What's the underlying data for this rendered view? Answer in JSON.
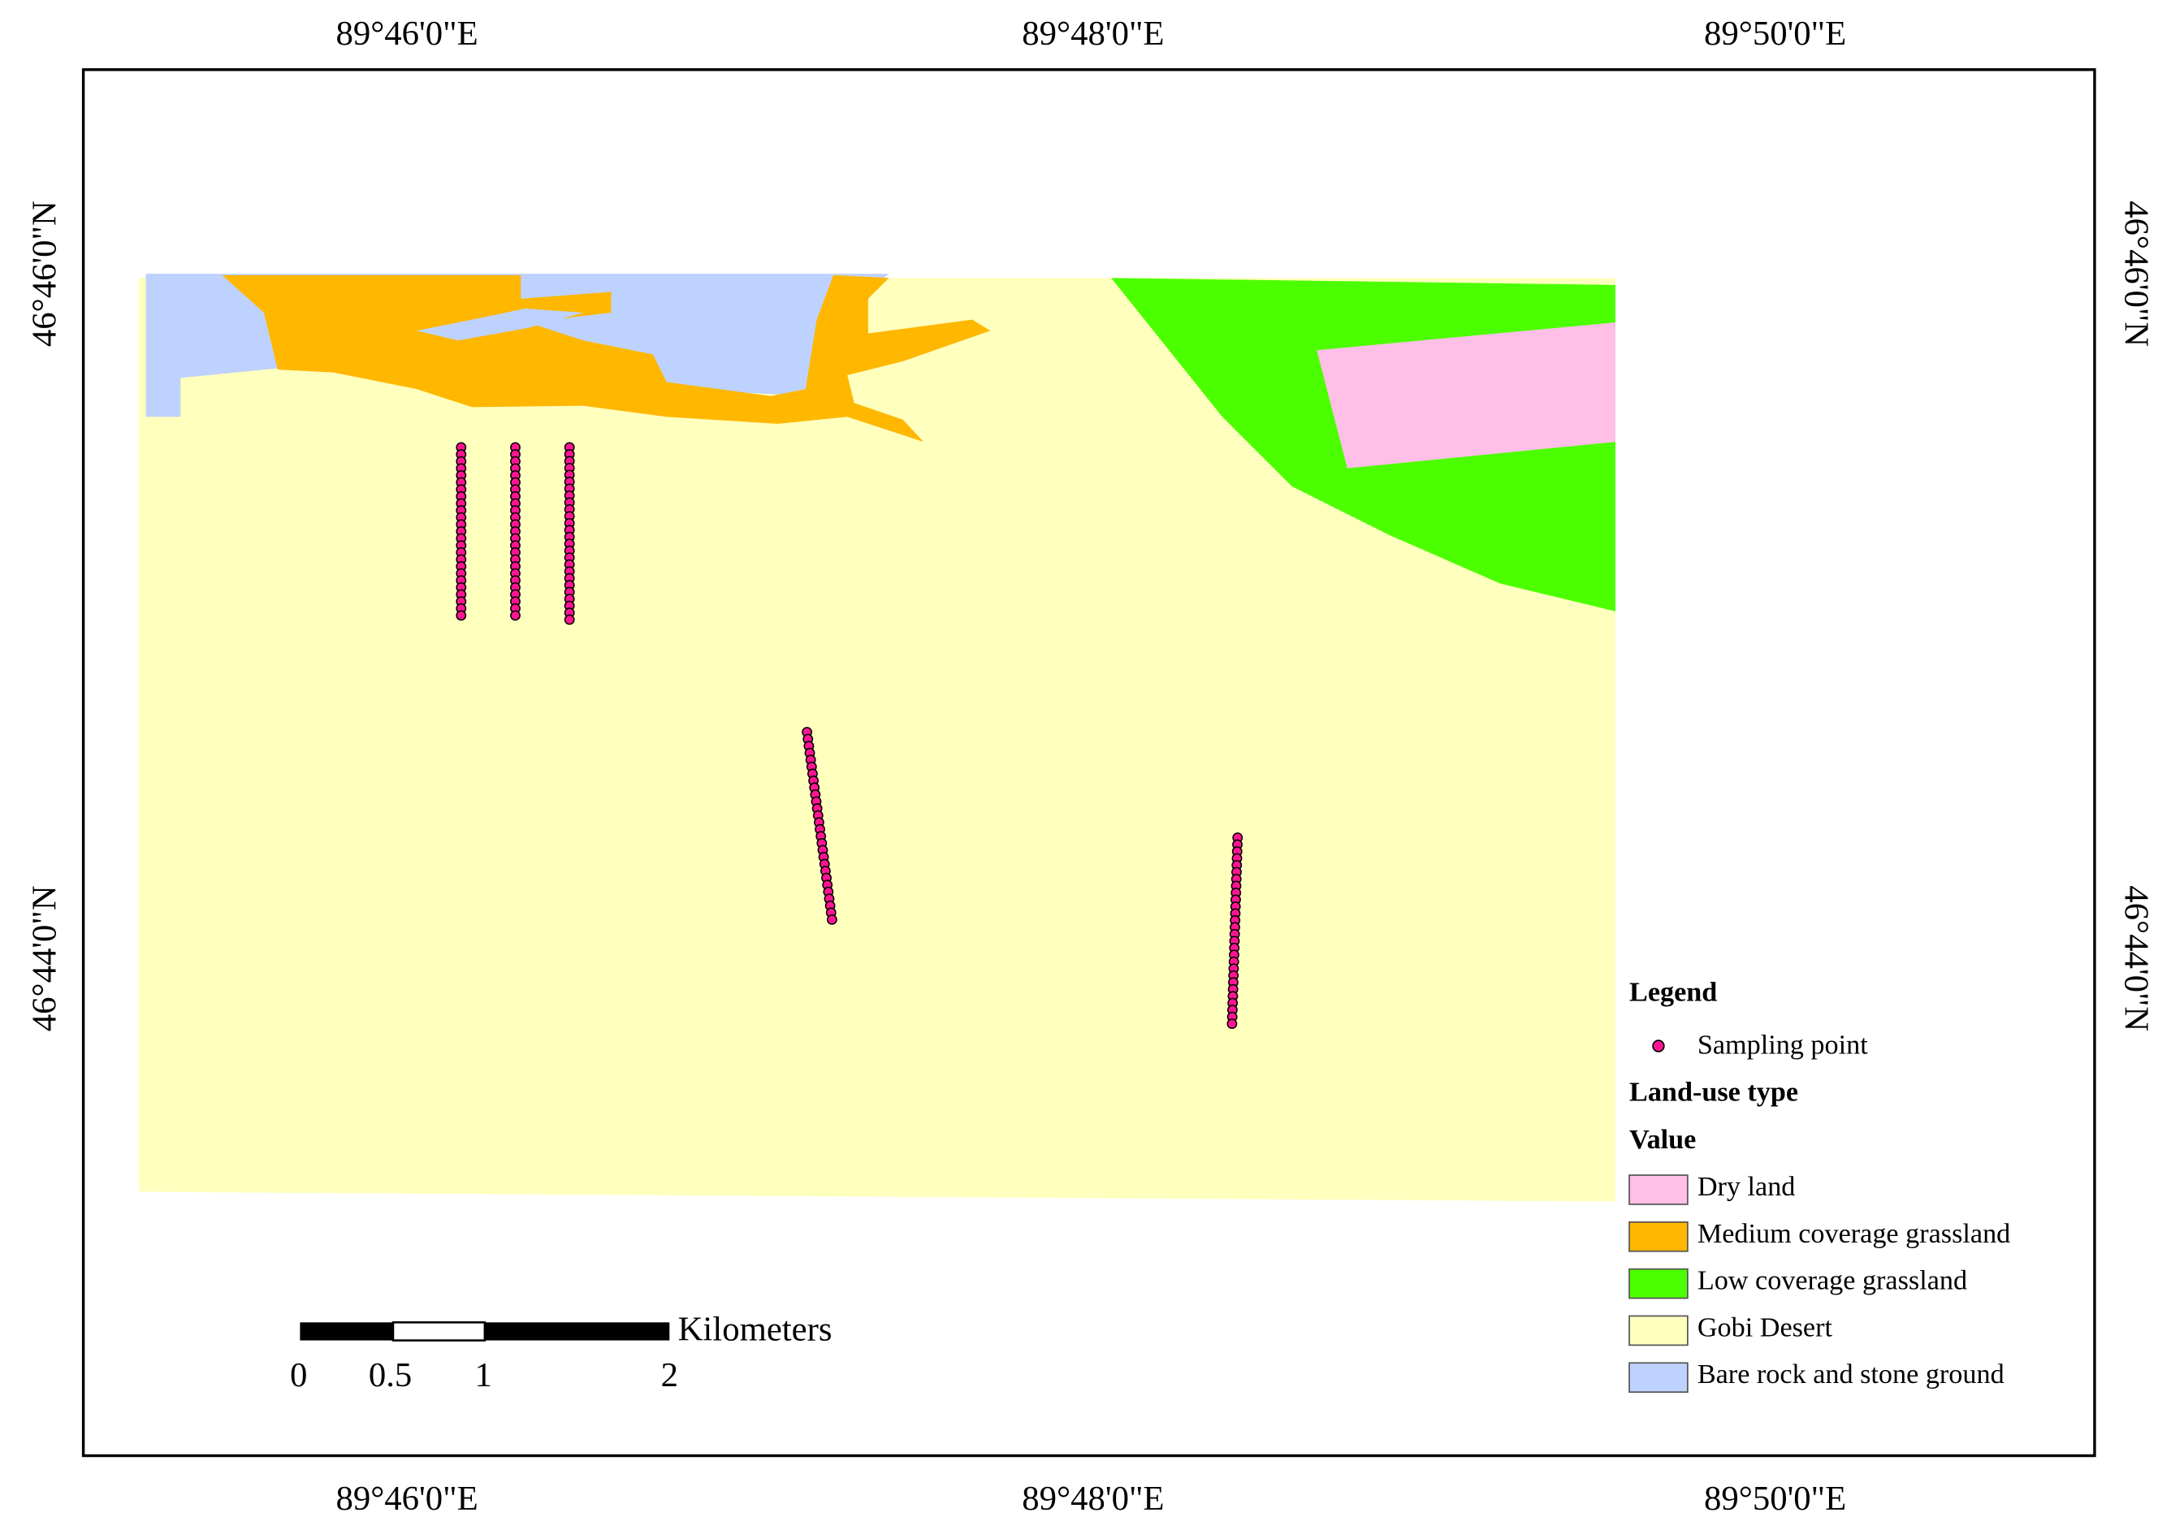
{
  "axes": {
    "top": [
      "89°46'0\"E",
      "89°48'0\"E",
      "89°50'0\"E"
    ],
    "bottom": [
      "89°46'0\"E",
      "89°48'0\"E",
      "89°50'0\"E"
    ],
    "left": [
      "46°46'0\"N",
      "46°44'0\"N"
    ],
    "right": [
      "46°46'0\"N",
      "46°44'0\"N"
    ]
  },
  "legend": {
    "title": "Legend",
    "point": "Sampling point",
    "group": "Land-use type",
    "field": "Value",
    "classes": [
      {
        "label": "Dry land",
        "color": "#ffbfe6"
      },
      {
        "label": "Medium coverage grassland",
        "color": "#ffb700"
      },
      {
        "label": "Low coverage grassland",
        "color": "#4cff00"
      },
      {
        "label": "Gobi Desert",
        "color": "#ffffbe"
      },
      {
        "label": "Bare rock and stone ground",
        "color": "#bed2ff"
      }
    ]
  },
  "scale_bar": {
    "unit": "Kilometers",
    "labels": [
      "0",
      "0.5",
      "1",
      "2"
    ]
  }
}
